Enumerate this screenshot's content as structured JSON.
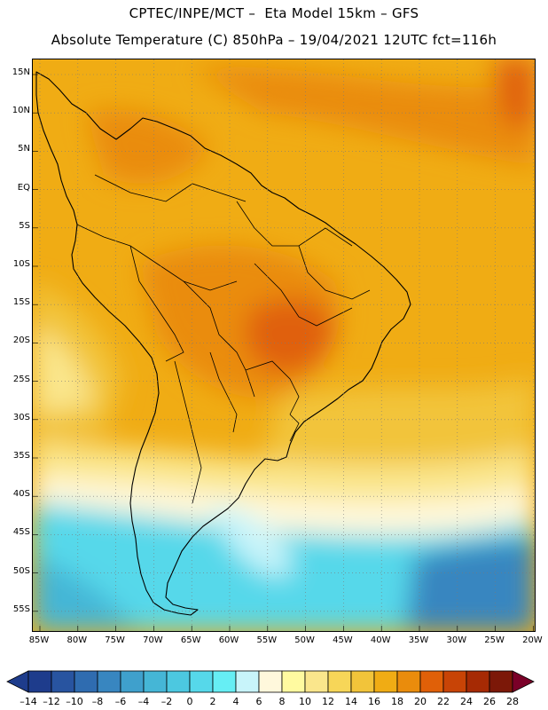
{
  "header": {
    "line1": "CPTEC/INPE/MCT –  Eta Model 15km – GFS",
    "line2": "Absolute Temperature (C) 850hPa – 19/04/2021 12UTC fct=116h"
  },
  "axes": {
    "lat_labels": [
      "15N",
      "10N",
      "5N",
      "EQ",
      "5S",
      "10S",
      "15S",
      "20S",
      "25S",
      "30S",
      "35S",
      "40S",
      "45S",
      "50S",
      "55S"
    ],
    "lon_labels": [
      "85W",
      "80W",
      "75W",
      "70W",
      "65W",
      "60W",
      "55W",
      "50W",
      "45W",
      "40W",
      "35W",
      "30W",
      "25W",
      "20W"
    ]
  },
  "legend": {
    "labels": [
      "-14",
      "-12",
      "-10",
      "-8",
      "-6",
      "-4",
      "-2",
      "0",
      "2",
      "4",
      "6",
      "8",
      "10",
      "12",
      "14",
      "16",
      "18",
      "20",
      "22",
      "24",
      "26",
      "28"
    ],
    "colors": [
      "#1e3c8c",
      "#2854a0",
      "#2f6cb0",
      "#3886c0",
      "#3fa0cc",
      "#45b6d6",
      "#4cc8e0",
      "#56d8ea",
      "#66eef4",
      "#c8f4fa",
      "#fff8dc",
      "#fffaa0",
      "#fae68c",
      "#f7d658",
      "#f2c43a",
      "#f0ac14",
      "#ea8c0c",
      "#e06008",
      "#c84406",
      "#a62a04",
      "#7c1808",
      "#7a0028"
    ]
  },
  "colors": {
    "coast": "#000000",
    "grid": "#7a7a7a"
  }
}
